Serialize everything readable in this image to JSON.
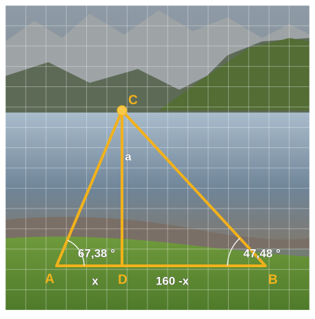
{
  "diagram": {
    "vertices": {
      "A": "A",
      "B": "B",
      "C": "C",
      "D": "D"
    },
    "segment_labels": {
      "height": "a",
      "left": "x",
      "right": "160 -x"
    },
    "angles": {
      "A": "67,38 °",
      "B": "47,48 °"
    }
  }
}
